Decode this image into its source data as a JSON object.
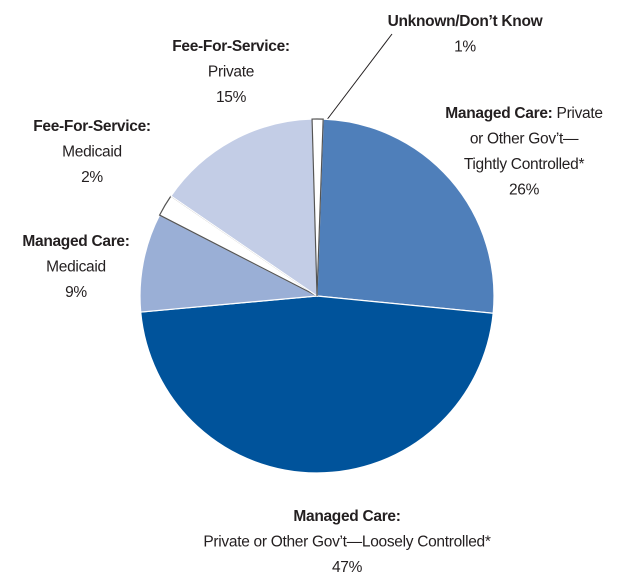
{
  "chart_data": {
    "type": "pie",
    "categories": [
      "Managed Care: Private or Other Gov't—Tightly Controlled*",
      "Managed Care: Private or Other Gov't—Loosely Controlled*",
      "Managed Care: Medicaid",
      "Fee-For-Service: Medicaid",
      "Fee-For-Service: Private",
      "Unknown/Don’t Know"
    ],
    "labels": [
      {
        "bold": "Managed Care:",
        "after": "Private",
        "lines": [
          "or Other Gov’t—",
          "Tightly Controlled*"
        ]
      },
      {
        "bold": "Managed Care:",
        "lines": [
          "Private or Other Gov’t—Loosely Controlled*"
        ]
      },
      {
        "bold": "Managed Care:",
        "lines": [
          "Medicaid"
        ]
      },
      {
        "bold": "Fee-For-Service:",
        "lines": [
          "Medicaid"
        ]
      },
      {
        "bold": "Fee-For-Service:",
        "lines": [
          "Private"
        ]
      },
      {
        "bold": "Unknown/Don’t Know",
        "lines": []
      }
    ],
    "values": [
      26,
      47,
      9,
      2,
      15,
      1
    ],
    "value_labels": [
      "26%",
      "47%",
      "9%",
      "2%",
      "15%",
      "1%"
    ],
    "colors": [
      "#4f7fba",
      "#00539b",
      "#9aafd6",
      "#ffffff",
      "#c3cde6",
      "#ffffff"
    ]
  }
}
